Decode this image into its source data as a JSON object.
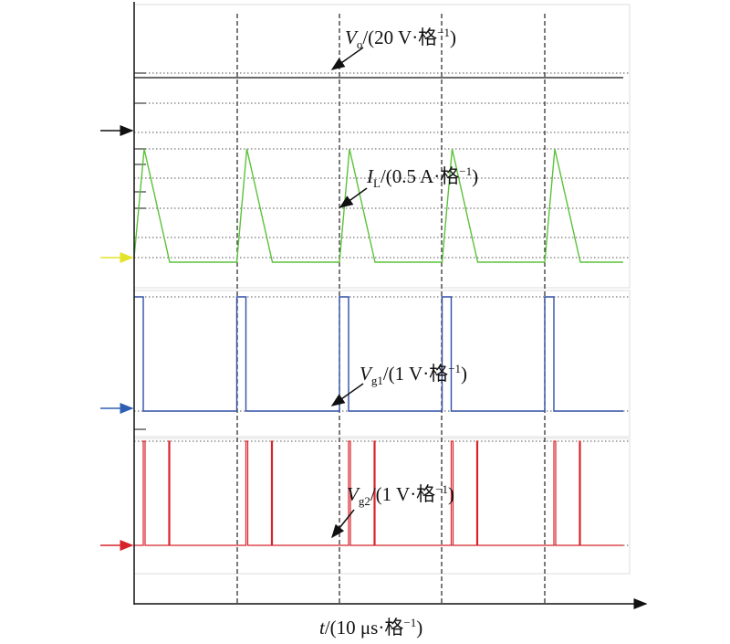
{
  "labels": [
    {
      "symbol": "V",
      "sub": "o",
      "text": "/(20 V·格",
      "sup": "−1",
      "close": ")"
    },
    {
      "symbol": "I",
      "sub": "L",
      "text": "/(0.5 A·格",
      "sup": "−1",
      "close": ")"
    },
    {
      "symbol": "V",
      "sub": "g1",
      "text": "/(1 V·格",
      "sup": "−1",
      "close": ")"
    },
    {
      "symbol": "V",
      "sub": "g2",
      "text": "/(1 V·格",
      "sup": "−1",
      "close": ")"
    }
  ],
  "x_axis": {
    "symbol": "t",
    "text": "/(10 μs·格",
    "sup": "−1",
    "close": ")"
  }
}
